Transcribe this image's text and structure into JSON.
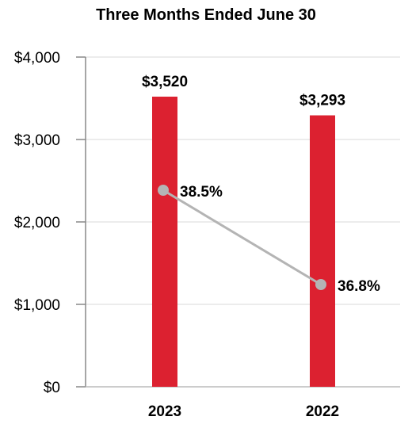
{
  "chart_data": {
    "type": "bar",
    "title": "Three Months Ended June 30",
    "categories": [
      "2023",
      "2022"
    ],
    "series": [
      {
        "values": [
          3520,
          3293
        ],
        "labels": [
          "$3,520",
          "$3,293"
        ],
        "color": "#dc2130"
      }
    ],
    "overlay_series": [
      {
        "type": "line",
        "values": [
          38.5,
          36.8
        ],
        "labels": [
          "38.5%",
          "36.8%"
        ],
        "color": "#b4b4b4"
      }
    ],
    "ylim": [
      0,
      4000
    ],
    "yticks": [
      0,
      1000,
      2000,
      3000,
      4000
    ],
    "ytick_labels": [
      "$0",
      "$1,000",
      "$2,000",
      "$3,000",
      "$4,000"
    ],
    "xlabel": "",
    "ylabel": "",
    "grid": true,
    "legend": "none"
  }
}
